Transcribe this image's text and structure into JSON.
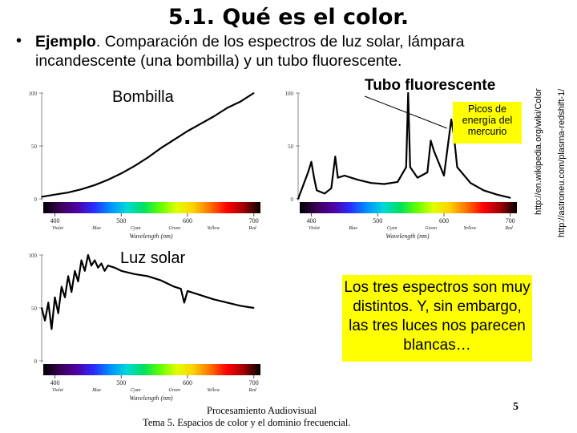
{
  "slide": {
    "title": "5.1. Qué es el color.",
    "bullet": "•",
    "bullet_lead": "Ejemplo",
    "bullet_text": ". Comparación de los espectros de luz solar, lámpara incandescente (una bombilla) y un tubo fluorescente.",
    "label_bulb": "Bombilla",
    "label_tube": "Tubo fluorescente",
    "label_sun": "Luz solar",
    "callout_mercury": "Picos de energía del mercurio",
    "note_text": "Los tres espectros son muy distintos. Y, sin embargo, las tres luces nos parecen blancas…",
    "source_1": "http://en.wikipedia.org/wiki/Color",
    "source_2": "http://astroneu.com/plasma-redshift-1/",
    "footer_line1": "Procesamiento Audiovisual",
    "footer_line2": "Tema 5. Espacios de color y el dominio frecuencial.",
    "page_number": "5",
    "callout_color": "#ffff00"
  },
  "chart_data": [
    {
      "type": "line",
      "name_label": "Bombilla",
      "xlabel": "Wavelength (nm)",
      "x_ticks": [
        "400",
        "500",
        "600",
        "700"
      ],
      "band_labels": [
        "Violet",
        "Blue",
        "Cyan",
        "Green",
        "Yellow",
        "Red"
      ],
      "y_ticks": [
        "0",
        "50",
        "100"
      ],
      "xlim": [
        380,
        710
      ],
      "ylim": [
        0,
        100
      ],
      "x": [
        380,
        400,
        420,
        440,
        460,
        480,
        500,
        520,
        540,
        560,
        580,
        600,
        620,
        640,
        660,
        680,
        700
      ],
      "y": [
        2,
        4,
        6,
        9,
        13,
        18,
        24,
        31,
        39,
        48,
        56,
        64,
        71,
        78,
        86,
        92,
        100
      ]
    },
    {
      "type": "line",
      "name_label": "Tubo fluorescente",
      "xlabel": "Wavelength (nm)",
      "x_ticks": [
        "400",
        "500",
        "600",
        "700"
      ],
      "band_labels": [
        "Violet",
        "Blue",
        "Cyan",
        "Green",
        "Yellow",
        "Red"
      ],
      "y_ticks": [
        "0",
        "50",
        "100"
      ],
      "xlim": [
        380,
        710
      ],
      "ylim": [
        0,
        100
      ],
      "x": [
        380,
        395,
        400,
        404,
        408,
        420,
        430,
        436,
        440,
        450,
        470,
        490,
        510,
        530,
        543,
        546,
        549,
        560,
        575,
        580,
        585,
        600,
        611,
        615,
        620,
        640,
        660,
        680,
        700
      ],
      "y": [
        0,
        25,
        35,
        20,
        8,
        5,
        10,
        40,
        20,
        22,
        18,
        15,
        14,
        16,
        30,
        100,
        30,
        20,
        25,
        55,
        45,
        22,
        75,
        60,
        30,
        15,
        8,
        4,
        1
      ]
    },
    {
      "type": "line",
      "name_label": "Luz solar",
      "xlabel": "Wavelength (nm)",
      "x_ticks": [
        "400",
        "500",
        "600",
        "700"
      ],
      "band_labels": [
        "Violet",
        "Blue",
        "Cyan",
        "Green",
        "Yellow",
        "Red"
      ],
      "y_ticks": [
        "0",
        "50",
        "100"
      ],
      "xlim": [
        380,
        710
      ],
      "ylim": [
        0,
        100
      ],
      "x": [
        380,
        385,
        390,
        395,
        400,
        405,
        410,
        415,
        420,
        425,
        430,
        435,
        440,
        445,
        450,
        455,
        460,
        465,
        470,
        475,
        480,
        490,
        500,
        520,
        540,
        560,
        580,
        590,
        595,
        600,
        620,
        640,
        660,
        680,
        700
      ],
      "y": [
        50,
        38,
        55,
        30,
        60,
        45,
        70,
        60,
        80,
        65,
        85,
        75,
        95,
        85,
        100,
        90,
        95,
        88,
        92,
        85,
        90,
        88,
        85,
        82,
        80,
        76,
        70,
        68,
        55,
        66,
        62,
        58,
        55,
        52,
        50
      ]
    }
  ]
}
